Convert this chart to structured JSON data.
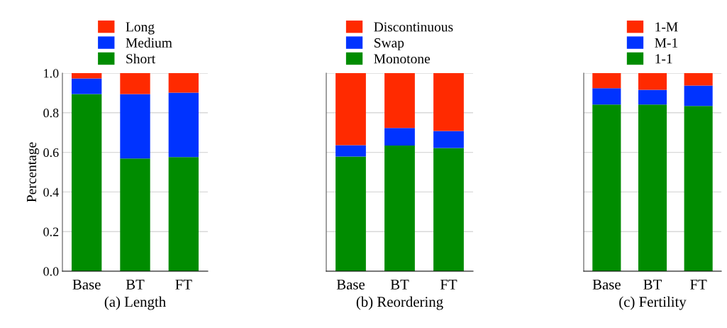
{
  "chart_data": [
    {
      "type": "bar",
      "stacked": true,
      "xlabel": "(a) Length",
      "ylabel": "Percentage",
      "categories": [
        "Base",
        "BT",
        "FT"
      ],
      "ylim": [
        0,
        1
      ],
      "yticks": [
        {
          "value": 0,
          "label": "0.0"
        },
        {
          "value": 0.2,
          "label": "0.2"
        },
        {
          "value": 0.4,
          "label": "0.4"
        },
        {
          "value": 0.6,
          "label": "0.6"
        },
        {
          "value": 0.8,
          "label": "0.8"
        },
        {
          "value": 1,
          "label": "1.0"
        }
      ],
      "grid": "y",
      "legend": "top",
      "series": [
        {
          "name": "Short",
          "color": "#008c00",
          "values": [
            0.894,
            0.569,
            0.576
          ]
        },
        {
          "name": "Medium",
          "color": "#0033ff",
          "values": [
            0.079,
            0.325,
            0.325
          ]
        },
        {
          "name": "Long",
          "color": "#ff2a00",
          "values": [
            0.027,
            0.106,
            0.099
          ]
        }
      ]
    },
    {
      "type": "bar",
      "stacked": true,
      "xlabel": "(b) Reordering",
      "categories": [
        "Base",
        "BT",
        "FT"
      ],
      "ylim": [
        0,
        1
      ],
      "yticks": [
        {
          "value": 0,
          "label": null
        },
        {
          "value": 0.2,
          "label": null
        },
        {
          "value": 0.4,
          "label": null
        },
        {
          "value": 0.6,
          "label": null
        },
        {
          "value": 0.8,
          "label": null
        },
        {
          "value": 1,
          "label": null
        }
      ],
      "tick_labels": "x",
      "grid": "y",
      "legend": "top",
      "series": [
        {
          "name": "Monotone",
          "color": "#008c00",
          "values": [
            0.579,
            0.634,
            0.622
          ]
        },
        {
          "name": "Swap",
          "color": "#0033ff",
          "values": [
            0.057,
            0.089,
            0.086
          ]
        },
        {
          "name": "Discontinuous",
          "color": "#ff2a00",
          "values": [
            0.364,
            0.277,
            0.292
          ]
        }
      ]
    },
    {
      "type": "bar",
      "stacked": true,
      "xlabel": "(c) Fertility",
      "categories": [
        "Base",
        "BT",
        "FT"
      ],
      "ylim": [
        0,
        1
      ],
      "yticks": [
        {
          "value": 0,
          "label": null
        },
        {
          "value": 0.2,
          "label": null
        },
        {
          "value": 0.4,
          "label": null
        },
        {
          "value": 0.6,
          "label": null
        },
        {
          "value": 0.8,
          "label": null
        },
        {
          "value": 1,
          "label": null
        }
      ],
      "tick_labels": "x",
      "grid": "y",
      "legend": "top",
      "series": [
        {
          "name": "1-1",
          "color": "#008c00",
          "values": [
            0.841,
            0.841,
            0.834
          ]
        },
        {
          "name": "M-1",
          "color": "#0033ff",
          "values": [
            0.083,
            0.075,
            0.103
          ]
        },
        {
          "name": "1-M",
          "color": "#ff2a00",
          "values": [
            0.076,
            0.084,
            0.063
          ]
        }
      ]
    }
  ]
}
